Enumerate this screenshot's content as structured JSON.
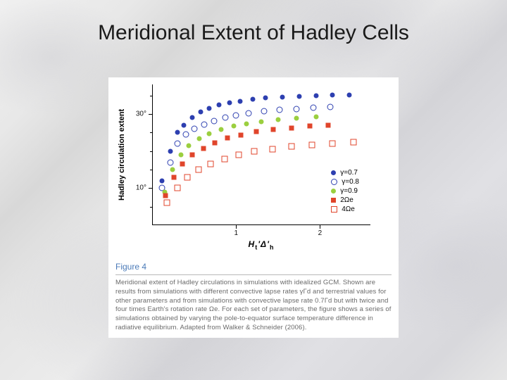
{
  "title": "Meridional Extent of Hadley Cells",
  "figure": {
    "label": "Figure 4",
    "caption": "Meridional extent of Hadley circulations in simulations with idealized GCM. Shown are results from simulations with different convective lapse rates γΓd and terrestrial values for other parameters and from simulations with convective lapse rate 0.7Γd but with twice and four times Earth's rotation rate Ωe. For each set of parameters, the figure shows a series of simulations obtained by varying the pole-to-equator surface temperature difference in radiative equilibrium. Adapted from Walker & Schneider (2006)."
  },
  "chart": {
    "type": "scatter",
    "background_color": "#ffffff",
    "ylabel": "Hadley circulation extent",
    "xlabel_html": "H<sub>t</sub>'Δ'<sub>h</sub>",
    "xlim": [
      0,
      2.6
    ],
    "ylim": [
      0,
      38
    ],
    "yticks": [
      {
        "v": 10,
        "label": "10°"
      },
      {
        "v": 30,
        "label": "30°"
      }
    ],
    "yticks_minor": [
      5,
      15,
      20,
      25,
      35
    ],
    "xticks": [
      {
        "v": 1,
        "label": "1"
      },
      {
        "v": 2,
        "label": "2"
      }
    ],
    "marker_size": 7,
    "series": [
      {
        "name": "gamma-0.7",
        "legend": "γ=0.7",
        "color": "#2d3fb0",
        "marker": "circle-fill",
        "points": [
          [
            0.12,
            12
          ],
          [
            0.22,
            20
          ],
          [
            0.3,
            25
          ],
          [
            0.38,
            27
          ],
          [
            0.48,
            29
          ],
          [
            0.58,
            30.5
          ],
          [
            0.68,
            31.5
          ],
          [
            0.8,
            32.5
          ],
          [
            0.92,
            33
          ],
          [
            1.05,
            33.5
          ],
          [
            1.2,
            34
          ],
          [
            1.35,
            34.3
          ],
          [
            1.55,
            34.6
          ],
          [
            1.75,
            34.8
          ],
          [
            1.95,
            35
          ],
          [
            2.15,
            35.1
          ],
          [
            2.35,
            35.2
          ]
        ]
      },
      {
        "name": "gamma-0.8",
        "legend": "γ=0.8",
        "color": "#2d3fb0",
        "marker": "circle-open",
        "points": [
          [
            0.12,
            10
          ],
          [
            0.22,
            17
          ],
          [
            0.3,
            22
          ],
          [
            0.4,
            24.5
          ],
          [
            0.5,
            26
          ],
          [
            0.62,
            27.2
          ],
          [
            0.74,
            28.2
          ],
          [
            0.87,
            29
          ],
          [
            1.0,
            29.7
          ],
          [
            1.15,
            30.2
          ],
          [
            1.33,
            30.7
          ],
          [
            1.52,
            31.1
          ],
          [
            1.72,
            31.4
          ],
          [
            1.92,
            31.7
          ],
          [
            2.12,
            31.9
          ]
        ]
      },
      {
        "name": "gamma-0.9",
        "legend": "γ=0.9",
        "color": "#9bcf3f",
        "marker": "circle-fill",
        "points": [
          [
            0.15,
            9
          ],
          [
            0.24,
            15
          ],
          [
            0.34,
            19
          ],
          [
            0.44,
            21.5
          ],
          [
            0.56,
            23.3
          ],
          [
            0.68,
            24.7
          ],
          [
            0.82,
            25.8
          ],
          [
            0.97,
            26.7
          ],
          [
            1.12,
            27.4
          ],
          [
            1.3,
            28
          ],
          [
            1.5,
            28.5
          ],
          [
            1.72,
            28.9
          ],
          [
            1.95,
            29.2
          ]
        ]
      },
      {
        "name": "two-omega",
        "legend": "2Ωe",
        "color": "#e0452b",
        "marker": "square-fill",
        "points": [
          [
            0.16,
            8
          ],
          [
            0.26,
            13
          ],
          [
            0.36,
            16.5
          ],
          [
            0.48,
            19
          ],
          [
            0.61,
            20.8
          ],
          [
            0.75,
            22.3
          ],
          [
            0.9,
            23.5
          ],
          [
            1.06,
            24.4
          ],
          [
            1.24,
            25.2
          ],
          [
            1.44,
            25.8
          ],
          [
            1.66,
            26.3
          ],
          [
            1.88,
            26.7
          ],
          [
            2.1,
            27
          ]
        ]
      },
      {
        "name": "four-omega",
        "legend": "4Ωe",
        "color": "#e0452b",
        "marker": "square-open",
        "points": [
          [
            0.18,
            6
          ],
          [
            0.3,
            10
          ],
          [
            0.42,
            13
          ],
          [
            0.55,
            15
          ],
          [
            0.7,
            16.6
          ],
          [
            0.86,
            17.9
          ],
          [
            1.03,
            19
          ],
          [
            1.22,
            19.9
          ],
          [
            1.43,
            20.6
          ],
          [
            1.66,
            21.2
          ],
          [
            1.9,
            21.7
          ],
          [
            2.15,
            22.1
          ],
          [
            2.4,
            22.4
          ]
        ]
      }
    ]
  }
}
